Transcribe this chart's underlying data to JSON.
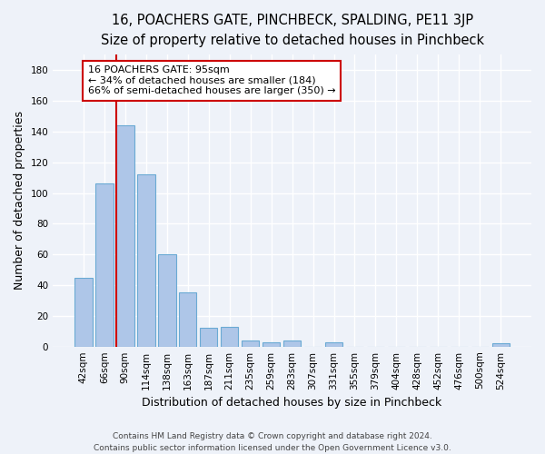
{
  "title": "16, POACHERS GATE, PINCHBECK, SPALDING, PE11 3JP",
  "subtitle": "Size of property relative to detached houses in Pinchbeck",
  "xlabel": "Distribution of detached houses by size in Pinchbeck",
  "ylabel": "Number of detached properties",
  "bar_labels": [
    "42sqm",
    "66sqm",
    "90sqm",
    "114sqm",
    "138sqm",
    "163sqm",
    "187sqm",
    "211sqm",
    "235sqm",
    "259sqm",
    "283sqm",
    "307sqm",
    "331sqm",
    "355sqm",
    "379sqm",
    "404sqm",
    "428sqm",
    "452sqm",
    "476sqm",
    "500sqm",
    "524sqm"
  ],
  "bar_heights": [
    45,
    106,
    144,
    112,
    60,
    35,
    12,
    13,
    4,
    3,
    4,
    0,
    3,
    0,
    0,
    0,
    0,
    0,
    0,
    0,
    2
  ],
  "bar_color": "#aec6e8",
  "bar_edge_color": "#6aaad4",
  "vline_x_index": 2,
  "vline_color": "#cc0000",
  "annotation_text": "16 POACHERS GATE: 95sqm\n← 34% of detached houses are smaller (184)\n66% of semi-detached houses are larger (350) →",
  "annotation_box_color": "#ffffff",
  "annotation_box_edge": "#cc0000",
  "ylim": [
    0,
    190
  ],
  "yticks": [
    0,
    20,
    40,
    60,
    80,
    100,
    120,
    140,
    160,
    180
  ],
  "footer_line1": "Contains HM Land Registry data © Crown copyright and database right 2024.",
  "footer_line2": "Contains public sector information licensed under the Open Government Licence v3.0.",
  "background_color": "#eef2f9",
  "grid_color": "#ffffff",
  "title_fontsize": 10.5,
  "axis_label_fontsize": 9,
  "tick_fontsize": 7.5,
  "footer_fontsize": 6.5
}
